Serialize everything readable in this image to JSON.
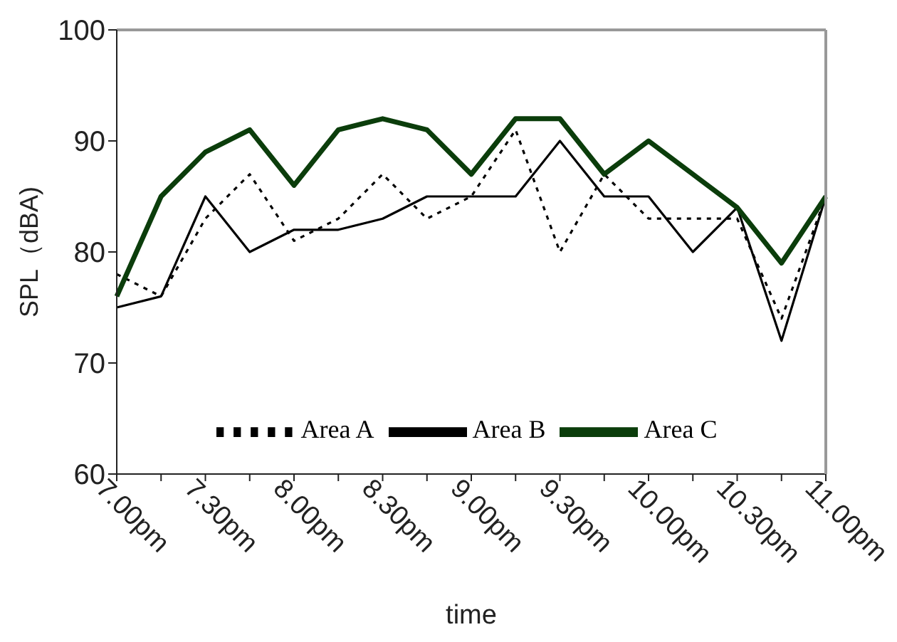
{
  "chart_data": {
    "type": "line",
    "xlabel": "time",
    "ylabel": "SPL（dBA)",
    "categories": [
      "7.00pm",
      null,
      "7.30pm",
      null,
      "8.00pm",
      null,
      "8.30pm",
      null,
      "9.00pm",
      null,
      "9.30pm",
      null,
      "10.00pm",
      null,
      "10.30pm",
      null,
      "11.00pm"
    ],
    "series": [
      {
        "name": "Area A",
        "color": "#000000",
        "line_style": "dotted",
        "values": [
          78,
          76,
          83,
          87,
          81,
          83,
          87,
          83,
          85,
          91,
          80,
          87,
          83,
          83,
          83,
          74,
          85
        ]
      },
      {
        "name": "Area B",
        "color": "#000000",
        "line_style": "solid",
        "values": [
          75,
          76,
          85,
          80,
          82,
          82,
          83,
          85,
          85,
          85,
          90,
          85,
          85,
          80,
          84,
          72,
          85
        ]
      },
      {
        "name": "Area C",
        "color": "#0b3d0b",
        "line_style": "solid",
        "values": [
          76,
          85,
          89,
          91,
          86,
          91,
          92,
          91,
          87,
          92,
          92,
          87,
          90,
          87,
          84,
          79,
          85
        ]
      }
    ],
    "ylim": [
      60,
      100
    ],
    "yticks": [
      60,
      70,
      80,
      90,
      100
    ],
    "grid": false,
    "legend": "bottom",
    "marker": "none"
  }
}
